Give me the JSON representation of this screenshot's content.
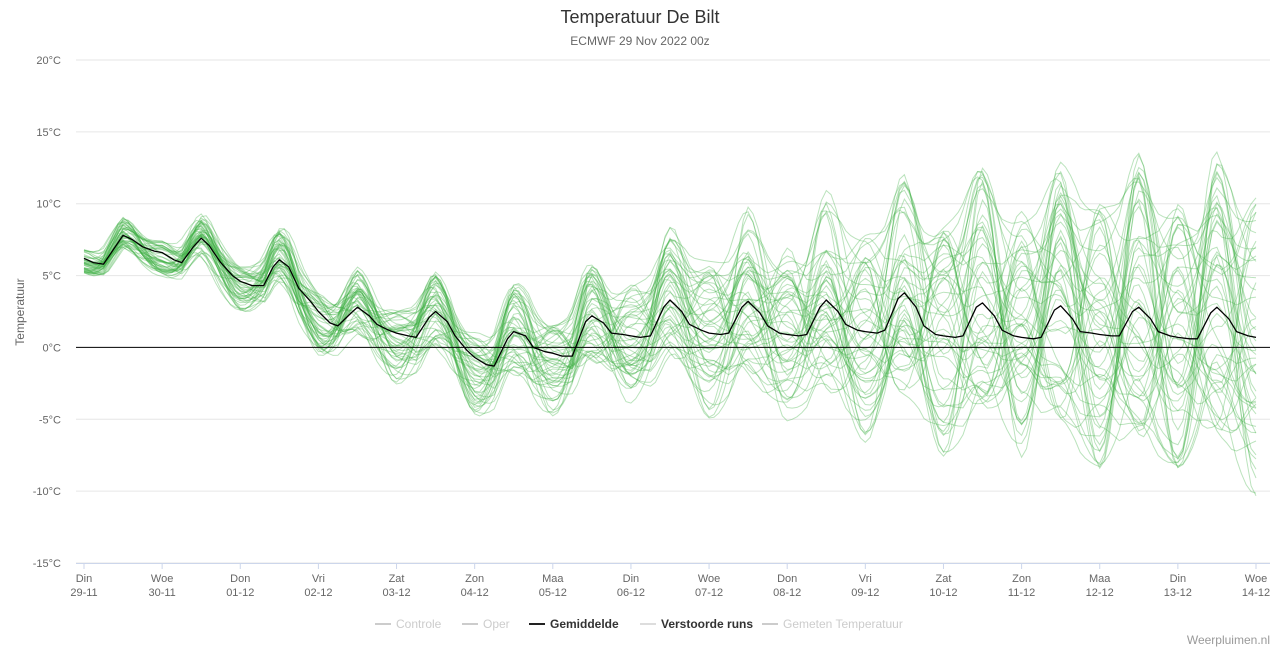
{
  "chart_data": {
    "type": "line",
    "title": "Temperatuur De Bilt",
    "subtitle": "ECMWF 29 Nov 2022 00z",
    "ylabel": "Temperatuur",
    "ylim": [
      -15,
      20
    ],
    "yticks": [
      20,
      15,
      10,
      5,
      0,
      -5,
      -10,
      -15
    ],
    "ytick_labels": [
      "20°C",
      "15°C",
      "10°C",
      "5°C",
      "0°C",
      "-5°C",
      "-10°C",
      "-15°C"
    ],
    "x_day_labels": [
      [
        "Din",
        "29-11"
      ],
      [
        "Woe",
        "30-11"
      ],
      [
        "Don",
        "01-12"
      ],
      [
        "Vri",
        "02-12"
      ],
      [
        "Zat",
        "03-12"
      ],
      [
        "Zon",
        "04-12"
      ],
      [
        "Maa",
        "05-12"
      ],
      [
        "Din",
        "06-12"
      ],
      [
        "Woe",
        "07-12"
      ],
      [
        "Don",
        "08-12"
      ],
      [
        "Vri",
        "09-12"
      ],
      [
        "Zat",
        "10-12"
      ],
      [
        "Zon",
        "11-12"
      ],
      [
        "Maa",
        "12-12"
      ],
      [
        "Din",
        "13-12"
      ],
      [
        "Woe",
        "14-12"
      ]
    ],
    "grid": true,
    "legend_placement": "bottom-center",
    "legend": [
      {
        "name": "Controle",
        "color": "#cccccc",
        "active": false
      },
      {
        "name": "Oper",
        "color": "#cccccc",
        "active": false
      },
      {
        "name": "Gemiddelde",
        "color": "#222222",
        "active": true
      },
      {
        "name": "Verstoorde runs",
        "color": "#dddddd",
        "active": true
      },
      {
        "name": "Gemeten Temperatuur",
        "color": "#cccccc",
        "active": false
      }
    ],
    "colors": {
      "mean": "#000000",
      "ensemble": "#3cb043",
      "grid": "#e6e6e6",
      "zero_line": "#000000"
    },
    "mean_series": {
      "name": "Gemiddelde",
      "x_days": [
        0,
        0.12,
        0.25,
        0.35,
        0.5,
        0.62,
        0.75,
        0.9,
        1.0,
        1.15,
        1.25,
        1.4,
        1.5,
        1.6,
        1.75,
        1.9,
        2.0,
        2.15,
        2.3,
        2.42,
        2.5,
        2.62,
        2.75,
        2.9,
        3.0,
        3.15,
        3.25,
        3.42,
        3.5,
        3.65,
        3.75,
        3.9,
        4.0,
        4.15,
        4.25,
        4.42,
        4.5,
        4.65,
        4.75,
        4.9,
        5.0,
        5.15,
        5.25,
        5.42,
        5.5,
        5.65,
        5.75,
        5.9,
        6.0,
        6.12,
        6.25,
        6.42,
        6.5,
        6.65,
        6.75,
        6.9,
        7.0,
        7.12,
        7.25,
        7.42,
        7.5,
        7.65,
        7.75,
        7.9,
        8.0,
        8.15,
        8.25,
        8.42,
        8.5,
        8.65,
        8.75,
        8.9,
        9.0,
        9.15,
        9.25,
        9.42,
        9.5,
        9.65,
        9.75,
        9.9,
        10.0,
        10.15,
        10.25,
        10.42,
        10.5,
        10.65,
        10.75,
        10.9,
        11.0,
        11.15,
        11.25,
        11.42,
        11.5,
        11.65,
        11.75,
        11.9,
        12.0,
        12.15,
        12.25,
        12.42,
        12.5,
        12.65,
        12.75,
        12.9,
        13.0,
        13.15,
        13.25,
        13.42,
        13.5,
        13.65,
        13.75,
        13.9,
        14.0,
        14.15,
        14.25,
        14.42,
        14.5,
        14.65,
        14.75,
        14.9,
        15.0
      ],
      "values": [
        6.2,
        5.9,
        5.8,
        6.6,
        7.8,
        7.5,
        7.0,
        6.7,
        6.6,
        6.1,
        5.9,
        7.0,
        7.6,
        7.1,
        5.9,
        5.0,
        4.6,
        4.3,
        4.3,
        5.6,
        6.1,
        5.6,
        4.1,
        3.2,
        2.5,
        1.7,
        1.5,
        2.4,
        2.8,
        2.2,
        1.6,
        1.2,
        1.0,
        0.8,
        0.7,
        2.1,
        2.5,
        1.8,
        0.8,
        -0.2,
        -0.7,
        -1.2,
        -1.3,
        0.6,
        1.1,
        0.8,
        0.0,
        -0.3,
        -0.4,
        -0.6,
        -0.6,
        1.8,
        2.2,
        1.7,
        1.0,
        0.9,
        0.8,
        0.7,
        0.8,
        2.8,
        3.3,
        2.5,
        1.6,
        1.2,
        1.0,
        0.9,
        1.0,
        2.8,
        3.2,
        2.4,
        1.5,
        1.0,
        0.9,
        0.8,
        0.9,
        2.8,
        3.3,
        2.5,
        1.6,
        1.2,
        1.1,
        1.0,
        1.2,
        3.4,
        3.8,
        2.8,
        1.5,
        0.9,
        0.8,
        0.7,
        0.8,
        2.8,
        3.1,
        2.2,
        1.2,
        0.8,
        0.7,
        0.6,
        0.7,
        2.6,
        2.9,
        2.0,
        1.1,
        1.0,
        0.9,
        0.8,
        0.8,
        2.5,
        2.8,
        2.0,
        1.1,
        0.8,
        0.7,
        0.6,
        0.6,
        2.4,
        2.8,
        2.0,
        1.1,
        0.8,
        0.7
      ]
    },
    "ensemble_members": 50,
    "ensemble_spread_days": [
      0,
      1,
      2,
      3,
      4,
      5,
      6,
      7,
      8,
      9,
      10,
      11,
      12,
      13,
      14,
      15
    ],
    "ensemble_spread_plus": [
      0.8,
      1.2,
      1.5,
      2.0,
      2.2,
      2.5,
      2.8,
      4.0,
      5.5,
      6.5,
      7.5,
      8.5,
      9.5,
      10.0,
      10.5,
      11.0
    ],
    "ensemble_spread_minus": [
      0.8,
      1.2,
      1.6,
      2.2,
      2.8,
      3.2,
      3.5,
      4.0,
      5.0,
      6.0,
      7.0,
      8.0,
      8.5,
      9.0,
      9.5,
      10.5
    ],
    "credit": "Weerpluimen.nl"
  }
}
